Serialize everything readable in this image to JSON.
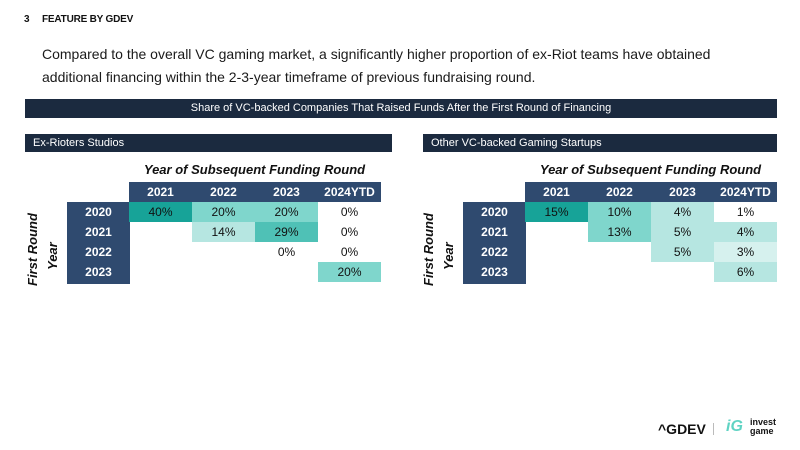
{
  "page_number": "3",
  "section": "FEATURE BY GDEV",
  "intro": "Compared to the overall VC gaming market, a significantly higher proportion of ex-Riot teams have obtained additional financing within the 2-3-year timeframe of previous fundraising round.",
  "title": "Share of VC-backed Companies That Raised Funds After the First Round of Financing",
  "colors": {
    "navy": "#2f4a6f",
    "dark_teal": "#17a398",
    "mid_teal": "#7fd6cc",
    "light_teal": "#b6e6e1",
    "pale_teal": "#d6f1ee"
  },
  "tables": [
    {
      "label": "Ex-Rioters Studios",
      "col_title": "Year of Subsequent Funding Round",
      "row_title_1": "First Round",
      "row_title_2": "Year",
      "columns": [
        "2021",
        "2022",
        "2023",
        "2024YTD"
      ],
      "rows": [
        {
          "year": "2020",
          "cells": [
            "40%",
            "20%",
            "20%",
            "0%"
          ],
          "shade": [
            "dark",
            "mid",
            "mid",
            "none"
          ]
        },
        {
          "year": "2021",
          "cells": [
            "",
            "14%",
            "29%",
            "0%"
          ],
          "shade": [
            "none",
            "light",
            "darkmid",
            "none"
          ]
        },
        {
          "year": "2022",
          "cells": [
            "",
            "",
            "0%",
            "0%"
          ],
          "shade": [
            "none",
            "none",
            "none",
            "none"
          ]
        },
        {
          "year": "2023",
          "cells": [
            "",
            "",
            "",
            "20%"
          ],
          "shade": [
            "none",
            "none",
            "none",
            "mid"
          ]
        }
      ]
    },
    {
      "label": "Other VC-backed Gaming Startups",
      "col_title": "Year of Subsequent Funding Round",
      "row_title_1": "First Round",
      "row_title_2": "Year",
      "columns": [
        "2021",
        "2022",
        "2023",
        "2024YTD"
      ],
      "rows": [
        {
          "year": "2020",
          "cells": [
            "15%",
            "10%",
            "4%",
            "1%"
          ],
          "shade": [
            "dark",
            "mid",
            "light",
            "none"
          ]
        },
        {
          "year": "2021",
          "cells": [
            "",
            "13%",
            "5%",
            "4%"
          ],
          "shade": [
            "none",
            "mid",
            "light",
            "light"
          ]
        },
        {
          "year": "2022",
          "cells": [
            "",
            "",
            "5%",
            "3%"
          ],
          "shade": [
            "none",
            "none",
            "light",
            "pale"
          ]
        },
        {
          "year": "2023",
          "cells": [
            "",
            "",
            "",
            "6%"
          ],
          "shade": [
            "none",
            "none",
            "none",
            "light"
          ]
        }
      ]
    }
  ],
  "footer": {
    "logo1": "^GDEV",
    "logo2_mark": "iG",
    "logo2_line1": "invest",
    "logo2_line2": "game"
  }
}
